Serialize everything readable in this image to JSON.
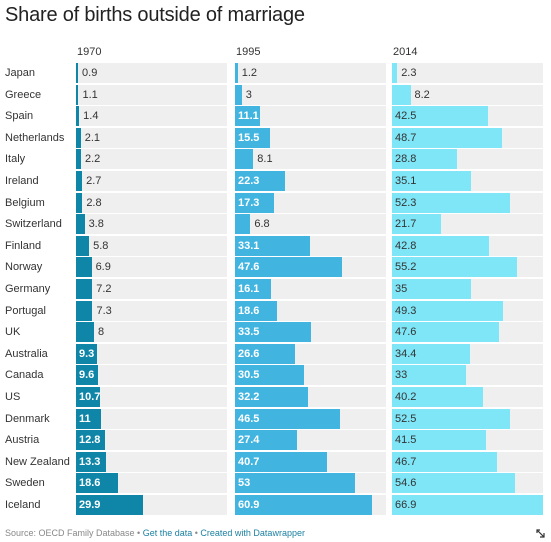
{
  "title": "Share of births outside of marriage",
  "footer": {
    "source": "Source: OECD Family Database",
    "sep1": " • ",
    "get_data": "Get the data",
    "sep2": " • ",
    "created": "Created with Datawrapper"
  },
  "colors": {
    "track": "#efefef",
    "c1970": "#0f86a8",
    "c1995": "#41b4e0",
    "c2014": "#7fe6f7"
  },
  "chart_data": {
    "type": "bar",
    "orientation": "horizontal",
    "title": "Share of births outside of marriage",
    "categories": [
      "Japan",
      "Greece",
      "Spain",
      "Netherlands",
      "Italy",
      "Ireland",
      "Belgium",
      "Switzerland",
      "Finland",
      "Norway",
      "Germany",
      "Portugal",
      "UK",
      "Australia",
      "Canada",
      "US",
      "Denmark",
      "Austria",
      "New Zealand",
      "Sweden",
      "Iceland"
    ],
    "series": [
      {
        "name": "1970",
        "values": [
          0.9,
          1.1,
          1.4,
          2.1,
          2.2,
          2.7,
          2.8,
          3.8,
          5.8,
          6.9,
          7.2,
          7.3,
          8,
          9.3,
          9.6,
          10.7,
          11,
          12.8,
          13.3,
          18.6,
          29.9
        ],
        "labels": [
          "0.9",
          "1.1",
          "1.4",
          "2.1",
          "2.2",
          "2.7",
          "2.8",
          "3.8",
          "5.8",
          "6.9",
          "7.2",
          "7.3",
          "8",
          "9.3",
          "9.6",
          "10.7",
          "11",
          "12.8",
          "13.3",
          "18.6",
          "29.9"
        ]
      },
      {
        "name": "1995",
        "values": [
          1.2,
          3,
          11.1,
          15.5,
          8.1,
          22.3,
          17.3,
          6.8,
          33.1,
          47.6,
          16.1,
          18.6,
          33.5,
          26.6,
          30.5,
          32.2,
          46.5,
          27.4,
          40.7,
          53,
          60.9
        ],
        "labels": [
          "1.2",
          "3",
          "11.1",
          "15.5",
          "8.1",
          "22.3",
          "17.3",
          "6.8",
          "33.1",
          "47.6",
          "16.1",
          "18.6",
          "33.5",
          "26.6",
          "30.5",
          "32.2",
          "46.5",
          "27.4",
          "40.7",
          "53",
          "60.9"
        ]
      },
      {
        "name": "2014",
        "values": [
          2.3,
          8.2,
          42.5,
          48.7,
          28.8,
          35.1,
          52.3,
          21.7,
          42.8,
          55.2,
          35,
          49.3,
          47.6,
          34.4,
          33,
          40.2,
          52.5,
          41.5,
          46.7,
          54.6,
          66.9
        ],
        "labels": [
          "2.3",
          "8.2",
          "42.5",
          "48.7",
          "28.8",
          "35.1",
          "52.3",
          "21.7",
          "42.8",
          "55.2",
          "35",
          "49.3",
          "47.6",
          "34.4",
          "33",
          "40.2",
          "52.5",
          "41.5",
          "46.7",
          "54.6",
          "66.9"
        ]
      }
    ],
    "xlim": [
      0,
      66.9
    ],
    "grid": false,
    "legend": "column headers"
  }
}
